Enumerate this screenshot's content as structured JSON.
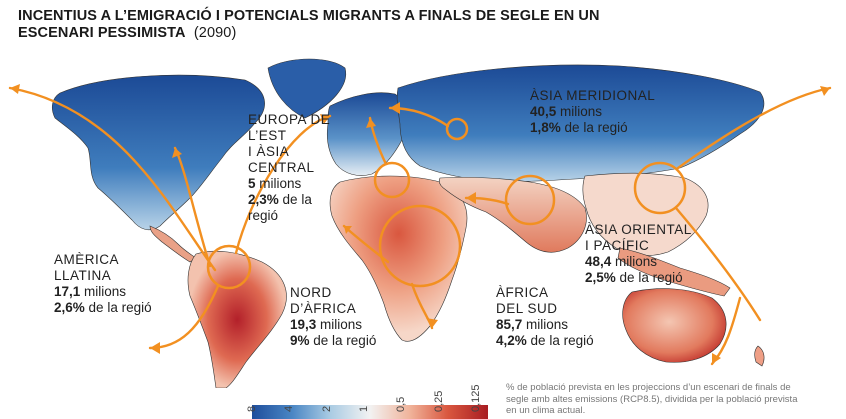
{
  "title": {
    "line1": "INCENTIUS A L’EMIGRACIÓ I POTENCIALS MIGRANTS A FINALS DE SEGLE EN UN",
    "line2": "ESCENARI PESSIMISTA",
    "year": "(2090)"
  },
  "regions": [
    {
      "id": "asia-meridional",
      "name_lines": [
        "ÀSIA MERIDIONAL"
      ],
      "migrants": "40,5",
      "migrants_unit": "milions",
      "pct": "1,8%",
      "pct_suffix": "de la regió"
    },
    {
      "id": "europa",
      "name_lines": [
        "EUROPA DE",
        "L’EST",
        "I ÀSIA",
        "CENTRAL"
      ],
      "migrants": "5",
      "migrants_unit": "milions",
      "pct": "2,3%",
      "pct_suffix": "de la",
      "pct_suffix2": "regió"
    },
    {
      "id": "america",
      "name_lines": [
        "AMÈRICA",
        "LLATINA"
      ],
      "migrants": "17,1",
      "migrants_unit": "milions",
      "pct": "2,6%",
      "pct_suffix": "de la regió"
    },
    {
      "id": "nord-africa",
      "name_lines": [
        "NORD",
        "D’ÀFRICA"
      ],
      "migrants": "19,3",
      "migrants_unit": "milions",
      "pct": "9%",
      "pct_suffix": "de la regió"
    },
    {
      "id": "africa-sud",
      "name_lines": [
        "ÀFRICA",
        "DEL SUD"
      ],
      "migrants": "85,7",
      "migrants_unit": "milions",
      "pct": "4,2%",
      "pct_suffix": "de la regió"
    },
    {
      "id": "asia-oriental",
      "name_lines": [
        "ÀSIA ORIENTAL",
        "I PACÍFIC"
      ],
      "migrants": "48,4",
      "migrants_unit": "milions",
      "pct": "2,5%",
      "pct_suffix": "de la regió"
    }
  ],
  "legend": {
    "ticks": [
      "8",
      "4",
      "2",
      "1",
      "0,5",
      "0,25",
      "0,125"
    ],
    "note": "% de població prevista en les projeccions d’un escenari de finals de segle amb altes emissions (RCP8.5), dividida per la població prevista en un clima actual.",
    "colors": [
      "#1f4e9c",
      "#4a86c4",
      "#a9cbe3",
      "#f2f2f2",
      "#f0b39a",
      "#d9573f",
      "#a81c22"
    ]
  },
  "colors": {
    "arrow": "#f29021",
    "ocean": "#ffffff",
    "land_border": "#333333"
  }
}
